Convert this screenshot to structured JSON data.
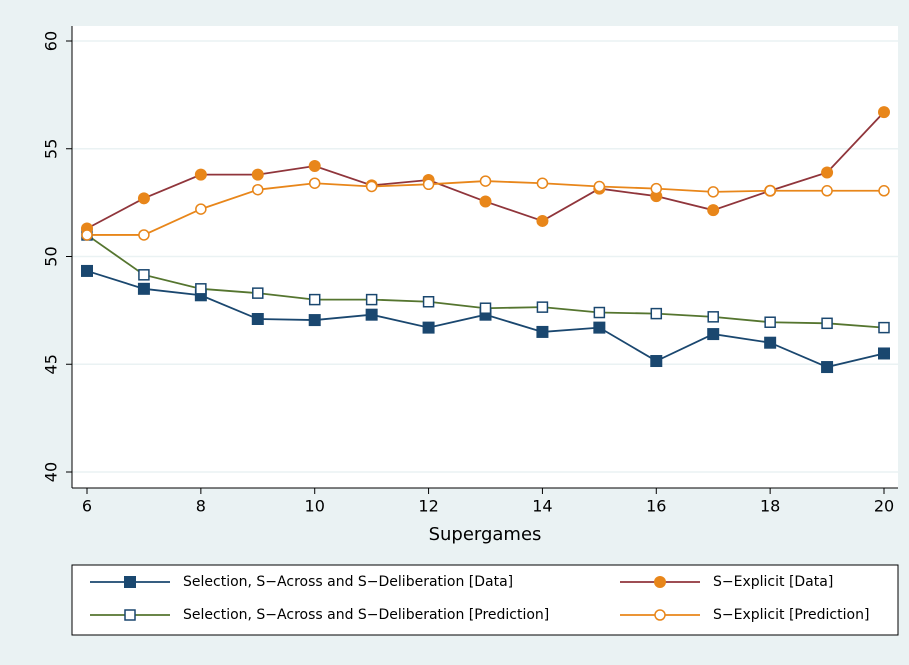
{
  "chart_data": {
    "type": "line",
    "x_label": "Supergames",
    "x": [
      6,
      7,
      8,
      9,
      10,
      11,
      12,
      13,
      14,
      15,
      16,
      17,
      18,
      19,
      20
    ],
    "xlim": [
      6,
      20
    ],
    "xticks": [
      6,
      8,
      10,
      12,
      14,
      16,
      18,
      20
    ],
    "ylim": [
      40,
      60
    ],
    "yticks": [
      40,
      45,
      50,
      55,
      60
    ],
    "grid": true,
    "series": [
      {
        "name": "Selection, S−Across and S−Deliberation [Data]",
        "color": "#1a476f",
        "marker_color": "#1a476f",
        "marker": "square",
        "filled": true,
        "values": [
          49.33,
          48.5,
          48.2,
          47.1,
          47.05,
          47.3,
          46.7,
          47.3,
          46.5,
          46.7,
          45.15,
          46.4,
          46.0,
          44.87,
          45.5
        ]
      },
      {
        "name": "Selection, S−Across and S−Deliberation [Prediction]",
        "color": "#55752f",
        "marker_color": "#1a476f",
        "marker": "square",
        "filled": false,
        "values": [
          51.0,
          49.15,
          48.5,
          48.3,
          48.0,
          48.0,
          47.9,
          47.6,
          47.65,
          47.4,
          47.35,
          47.2,
          46.95,
          46.9,
          46.7
        ]
      },
      {
        "name": "S−Explicit [Data]",
        "color": "#90353b",
        "marker_color": "#e8861a",
        "marker": "circle",
        "filled": true,
        "values": [
          51.3,
          52.7,
          53.8,
          53.8,
          54.2,
          53.3,
          53.55,
          52.55,
          51.65,
          53.15,
          52.8,
          52.15,
          53.05,
          53.9,
          56.7
        ]
      },
      {
        "name": "S−Explicit [Prediction]",
        "color": "#e8861a",
        "marker_color": "#e8861a",
        "marker": "circle",
        "filled": false,
        "values": [
          51.0,
          51.0,
          52.2,
          53.1,
          53.4,
          53.25,
          53.35,
          53.5,
          53.4,
          53.25,
          53.15,
          53.0,
          53.05,
          53.05,
          53.05
        ]
      }
    ]
  }
}
